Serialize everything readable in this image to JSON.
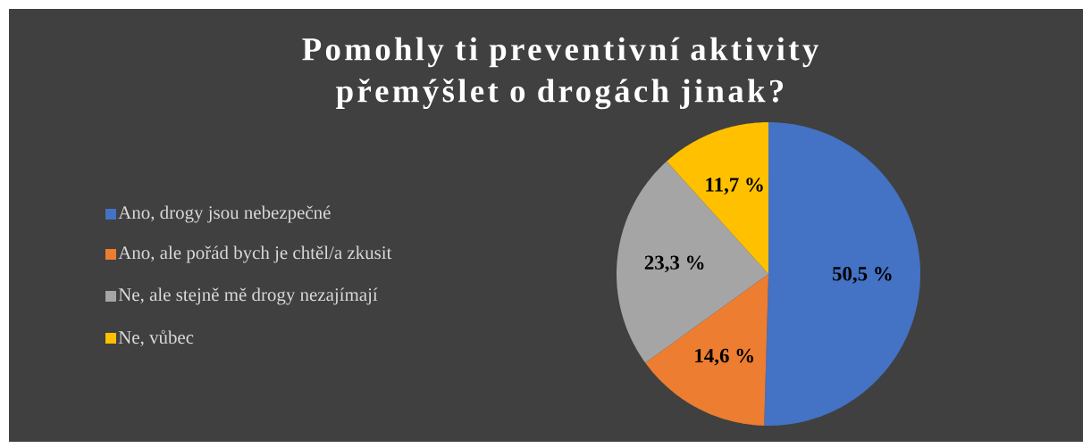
{
  "chart_data": {
    "type": "pie",
    "title": "Pomohly ti preventivní aktivity přemýšlet o drogách jinak?",
    "categories": [
      "Ano, drogy jsou nebezpečné",
      "Ano, ale pořád bych je chtěl/a zkusit",
      "Ne, ale stejně mě drogy nezajímají",
      "Ne, vůbec"
    ],
    "values": [
      50.5,
      14.6,
      23.3,
      11.7
    ],
    "colors": [
      "#4472c4",
      "#ed7d31",
      "#a5a5a5",
      "#ffc000"
    ],
    "value_labels": [
      "50,5 %",
      "14,6 %",
      "23,3 %",
      "11,7 %"
    ],
    "legend": "left"
  }
}
